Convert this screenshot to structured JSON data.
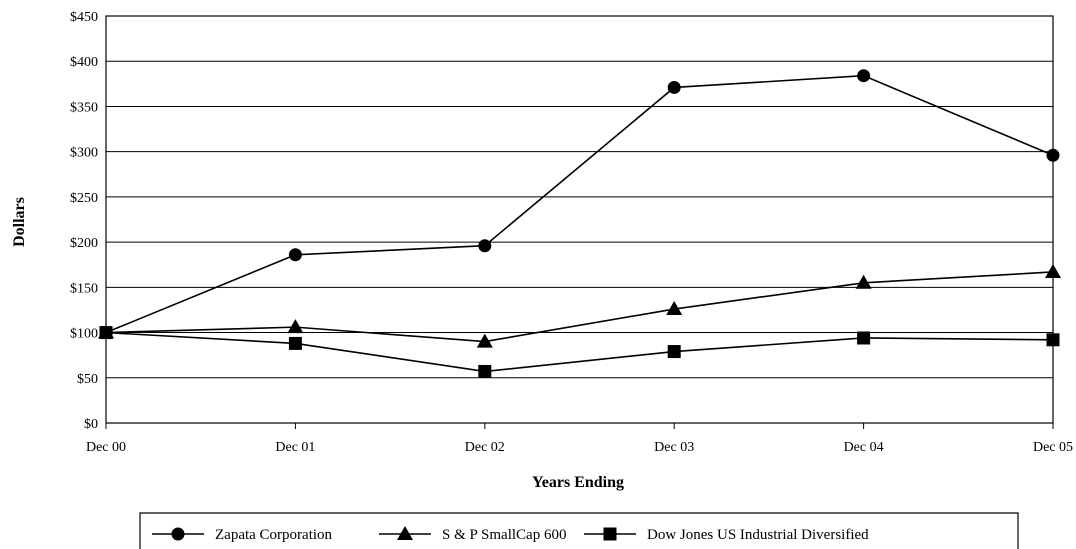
{
  "chart_data": {
    "type": "line",
    "categories": [
      "Dec 00",
      "Dec 01",
      "Dec 02",
      "Dec 03",
      "Dec 04",
      "Dec 05"
    ],
    "ylabel": "Dollars",
    "xlabel": "Years Ending",
    "ylim": [
      0,
      450
    ],
    "yticks": [
      0,
      50,
      100,
      150,
      200,
      250,
      300,
      350,
      400,
      450
    ],
    "ytick_labels": [
      "$0",
      "$50",
      "$100",
      "$150",
      "$200",
      "$250",
      "$300",
      "$350",
      "$400",
      "$450"
    ],
    "grid": true,
    "legend_position": "bottom",
    "line_color": "#000000",
    "series": [
      {
        "name": "Zapata Corporation",
        "marker": "circle",
        "values": [
          100,
          186,
          196,
          371,
          384,
          296
        ]
      },
      {
        "name": "S & P SmallCap 600",
        "marker": "triangle",
        "values": [
          100,
          106,
          90,
          126,
          155,
          167
        ]
      },
      {
        "name": "Dow Jones US Industrial Diversified",
        "marker": "square",
        "values": [
          100,
          88,
          57,
          79,
          94,
          92
        ]
      }
    ]
  }
}
